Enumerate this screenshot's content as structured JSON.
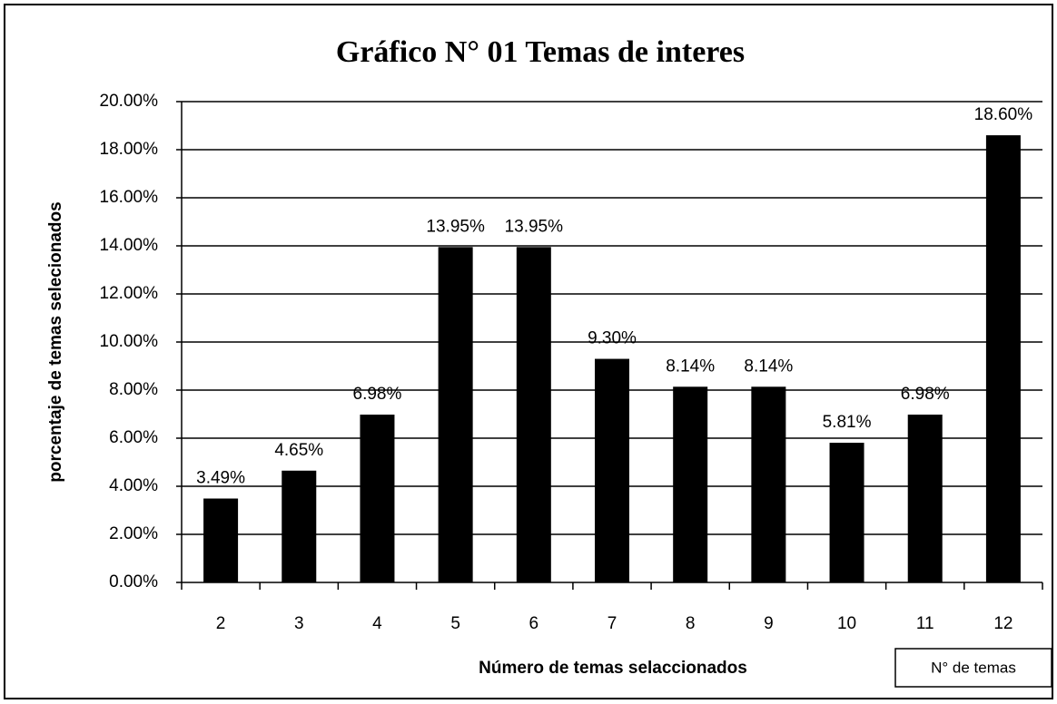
{
  "chart_data": {
    "type": "bar",
    "title": "Gráfico N° 01 Temas de interes",
    "x_label": "Número de temas selaccionados",
    "y_label": "porcentaje de temas selecionados",
    "categories": [
      "2",
      "3",
      "4",
      "5",
      "6",
      "7",
      "8",
      "9",
      "10",
      "11",
      "12"
    ],
    "series": [
      {
        "name": "N° de temas",
        "color": "#000000",
        "values": [
          3.49,
          4.65,
          6.98,
          13.95,
          13.95,
          9.3,
          8.14,
          8.14,
          5.81,
          6.98,
          18.6
        ],
        "value_labels": [
          "3.49%",
          "4.65%",
          "6.98%",
          "13.95%",
          "13.95%",
          "9.30%",
          "8.14%",
          "8.14%",
          "5.81%",
          "6.98%",
          "18.60%"
        ]
      }
    ],
    "ylim": [
      0,
      20
    ],
    "yticks": [
      {
        "value": 0,
        "label": "0.00%"
      },
      {
        "value": 2,
        "label": "2.00%"
      },
      {
        "value": 4,
        "label": "4.00%"
      },
      {
        "value": 6,
        "label": "6.00%"
      },
      {
        "value": 8,
        "label": "8.00%"
      },
      {
        "value": 10,
        "label": "10.00%"
      },
      {
        "value": 12,
        "label": "12.00%"
      },
      {
        "value": 14,
        "label": "14.00%"
      },
      {
        "value": 16,
        "label": "16.00%"
      },
      {
        "value": 18,
        "label": "18.00%"
      },
      {
        "value": 20,
        "label": "20.00%"
      }
    ],
    "grid": true,
    "legend": "bottom-right"
  }
}
